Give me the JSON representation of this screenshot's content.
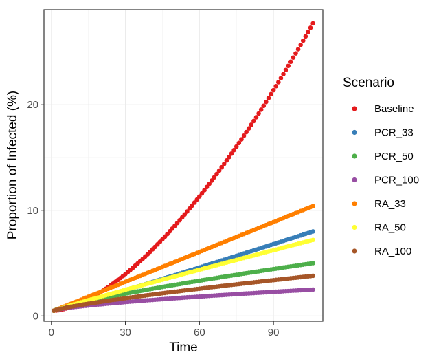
{
  "chart_data": {
    "type": "scatter",
    "xlabel": "Time",
    "ylabel": "Proportion of Infected (%)",
    "xlim": [
      -3,
      110
    ],
    "ylim": [
      -0.5,
      29
    ],
    "x_ticks": [
      0,
      30,
      60,
      90
    ],
    "y_ticks": [
      0,
      10,
      20
    ],
    "grid": true,
    "legend": {
      "title": "Scenario",
      "placement": "right"
    },
    "x_range": [
      1,
      106
    ],
    "series": [
      {
        "name": "Baseline",
        "color": "#e41a1c",
        "start": 0.5,
        "end": 27.7,
        "curve": 1.6
      },
      {
        "name": "PCR_33",
        "color": "#377eb8",
        "start": 0.5,
        "end": 8.0,
        "curve": 1.05
      },
      {
        "name": "PCR_50",
        "color": "#4daf4a",
        "start": 0.5,
        "end": 5.0,
        "curve": 0.8
      },
      {
        "name": "PCR_100",
        "color": "#984ea3",
        "start": 0.5,
        "end": 2.5,
        "curve": 0.7
      },
      {
        "name": "RA_33",
        "color": "#ff7f00",
        "start": 0.5,
        "end": 10.4,
        "curve": 1.0
      },
      {
        "name": "RA_50",
        "color": "#ffff33",
        "start": 0.5,
        "end": 7.2,
        "curve": 0.95
      },
      {
        "name": "RA_100",
        "color": "#a65628",
        "start": 0.5,
        "end": 3.8,
        "curve": 0.8
      }
    ]
  }
}
